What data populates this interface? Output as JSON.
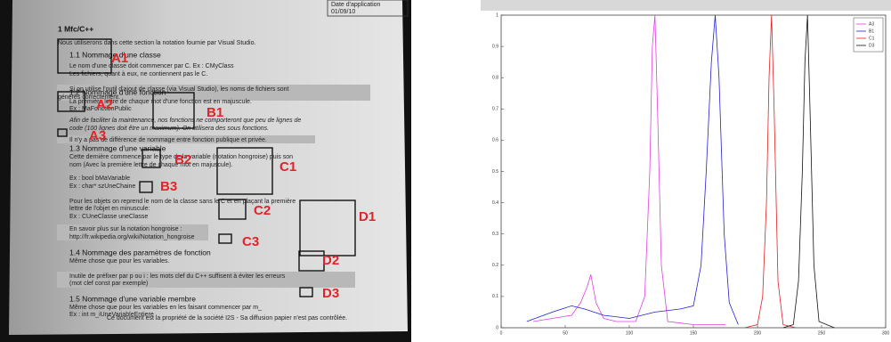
{
  "document": {
    "header": [
      "Date d'application",
      "01/09/10"
    ],
    "lines": [
      "1 Mfc/C++",
      "Nous utiliserons dans cette section la notation fournie par Visual Studio.",
      "1.1 Nommage d'une classe",
      "Le nom d'une classe doit commencer par C. Ex : CMyClass",
      "Les fichiers, quant à eux, ne contiennent pas le C.",
      "Si on utilise l'outil d'ajout de classe (via Visual Studio), les noms de fichiers sont",
      "générés correctement.",
      "1.2 Nommage d'une fonction",
      "La première lettre de chaque mot d'une fonction est en majuscule.",
      "Ex : MaFonctionPublic",
      "Afin de faciliter la maintenance, nos fonctions ne comporteront que peu de lignes de",
      "code (100 lignes doit être un maximum). On utilisera des sous fonctions.",
      "Il n'y a pas de différence de nommage entre fonction publique et privée.",
      "1.3 Nommage d'une variable",
      "Cette dernière commence par le type de la variable (notation hongroise) puis son",
      "nom (Avec la première lettre de chaque mot en majuscule).",
      "Ex : bool bMaVariable",
      "Ex : char* szUneChaine",
      "Pour les objets on reprend le nom de la classe sans le C et en plaçant la première",
      "lettre de l'objet en minuscule:",
      "Ex : CUneClasse uneClasse",
      "En savoir plus sur la notation hongroise :",
      "http://fr.wikipedia.org/wiki/Notation_hongroise",
      "1.4 Nommage des paramètres de fonction",
      "Même chose que pour les variables.",
      "Inutile de préfixer par p ou i : les mots clef du C++ suffisent à éviter les erreurs",
      "(mot clef const par exemple)",
      "1.5 Nommage d'une variable membre",
      "Même chose que pour les variables en les faisant commencer par m_",
      "Ex : int m_iUneVariableEntiere",
      "Ce document est la propriété de la société I2S - Sa diffusion papier n'est pas contrôlée."
    ],
    "labels": [
      "A1",
      "A2",
      "B1",
      "A3",
      "B2",
      "C1",
      "B3",
      "C2",
      "D1",
      "C3",
      "D2",
      "D3"
    ]
  },
  "chart_data": {
    "type": "line",
    "xlim": [
      0,
      300
    ],
    "xticks": [
      0,
      50,
      100,
      150,
      200,
      250,
      300
    ],
    "ylim": [
      0,
      1
    ],
    "yticks": [
      0,
      0.1,
      0.2,
      0.3,
      0.4,
      0.5,
      0.6,
      0.7,
      0.8,
      0.9,
      1
    ],
    "legend": "upper right",
    "series": [
      {
        "name": "A3",
        "color": "#e040e0",
        "x": [
          25,
          40,
          55,
          62,
          67,
          70,
          74,
          80,
          90,
          105,
          112,
          116,
          118,
          120,
          122,
          125,
          130,
          150,
          175
        ],
        "values": [
          0.02,
          0.03,
          0.04,
          0.08,
          0.13,
          0.17,
          0.08,
          0.03,
          0.02,
          0.02,
          0.1,
          0.5,
          0.9,
          1,
          0.7,
          0.2,
          0.02,
          0.01,
          0.01
        ]
      },
      {
        "name": "B1",
        "color": "#2020d0",
        "x": [
          20,
          40,
          55,
          65,
          80,
          100,
          120,
          140,
          150,
          156,
          160,
          164,
          167,
          170,
          174,
          178,
          185
        ],
        "values": [
          0.02,
          0.05,
          0.07,
          0.06,
          0.04,
          0.03,
          0.05,
          0.06,
          0.07,
          0.2,
          0.5,
          0.85,
          1,
          0.8,
          0.3,
          0.08,
          0.01
        ]
      },
      {
        "name": "C1",
        "color": "#e02020",
        "x": [
          190,
          200,
          204,
          207,
          209,
          211,
          213,
          216,
          220,
          230
        ],
        "values": [
          0,
          0.01,
          0.1,
          0.4,
          0.8,
          1,
          0.7,
          0.15,
          0.01,
          0
        ]
      },
      {
        "name": "D3",
        "color": "#111111",
        "x": [
          220,
          228,
          232,
          235,
          237,
          239,
          241,
          244,
          248,
          260
        ],
        "values": [
          0,
          0.01,
          0.15,
          0.5,
          0.85,
          1,
          0.7,
          0.2,
          0.02,
          0
        ]
      }
    ]
  }
}
